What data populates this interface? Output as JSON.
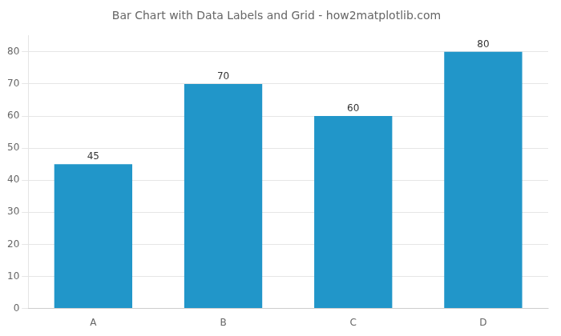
{
  "chart_data": {
    "type": "bar",
    "title": "Bar Chart with Data Labels and Grid - how2matplotlib.com",
    "categories": [
      "A",
      "B",
      "C",
      "D"
    ],
    "values": [
      45,
      70,
      60,
      80
    ],
    "color": "#2196C9",
    "ylim": [
      0,
      85
    ],
    "yticks": [
      0,
      10,
      20,
      30,
      40,
      50,
      60,
      70,
      80
    ],
    "grid": true,
    "data_labels": true
  }
}
